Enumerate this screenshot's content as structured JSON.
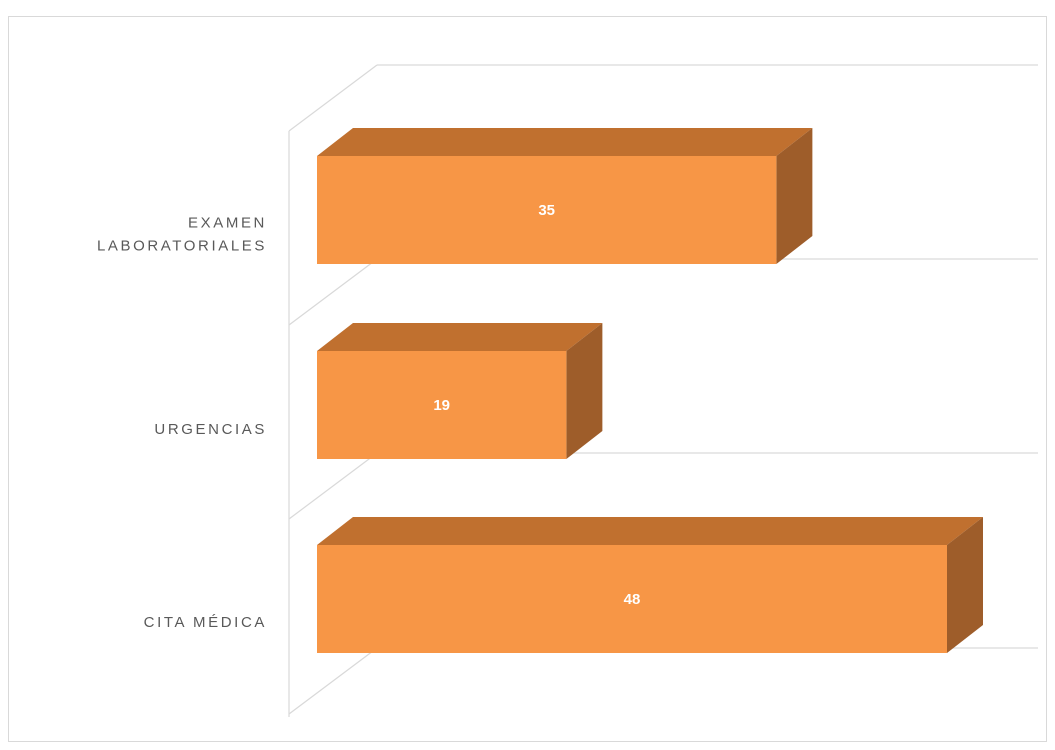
{
  "chart_data": {
    "type": "bar",
    "orientation": "horizontal",
    "style": "3d",
    "categories": [
      "CITA MÉDICA",
      "URGENCIAS",
      "EXAMEN LABORATORIALES"
    ],
    "category_lines": [
      [
        "CITA MÉDICA"
      ],
      [
        "URGENCIAS"
      ],
      [
        "EXAMEN",
        "LABORATORIALES"
      ]
    ],
    "values": [
      48,
      19,
      35
    ],
    "data_labels": [
      "48",
      "19",
      "35"
    ],
    "title": "",
    "xlabel": "",
    "ylabel": "",
    "xlim": [
      0,
      50
    ],
    "grid": true,
    "legend": "none",
    "colors": {
      "bar_front": "#f79646",
      "bar_top": "#c0702f",
      "bar_side": "#9e5d2a",
      "gridline": "#d9d9d9",
      "category_text": "#595959",
      "data_label_text": "#ffffff"
    }
  }
}
